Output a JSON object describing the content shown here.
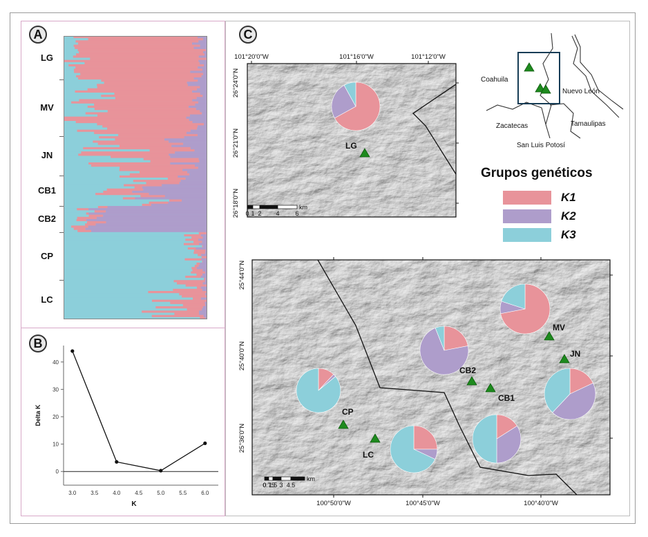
{
  "panels": {
    "a": "A",
    "b": "B",
    "c": "C"
  },
  "colors": {
    "k1": "#E8939A",
    "k2": "#AE9DCB",
    "k3": "#8CCFDA"
  },
  "structure": {
    "populations": [
      "LG",
      "MV",
      "JN",
      "CB1",
      "CB2",
      "CP",
      "LC"
    ]
  },
  "chart_data": {
    "type": "line",
    "x": [
      3.0,
      4.0,
      5.0,
      6.0
    ],
    "y": [
      44.0,
      3.5,
      0.3,
      10.3
    ],
    "xlabel": "K",
    "ylabel": "Delta K",
    "xticks": [
      "3.0",
      "3.5",
      "4.0",
      "4.5",
      "5.0",
      "5.5",
      "6.0"
    ],
    "yticks": [
      "0",
      "10",
      "20",
      "30",
      "40"
    ],
    "xlim": [
      2.8,
      6.3
    ],
    "ylim": [
      -5,
      46
    ]
  },
  "map_top": {
    "lon_labels": [
      "101°20'0\"W",
      "101°16'0\"W",
      "101°12'0\"W"
    ],
    "lat_labels": [
      "26°24'0\"N",
      "26°21'0\"N",
      "26°18'0\"N"
    ],
    "scale": {
      "ticks": [
        "0",
        "1",
        "2",
        "4",
        "6"
      ],
      "unit": "km"
    },
    "sites": [
      {
        "name": "LG",
        "k1": 0.67,
        "k2": 0.25,
        "k3": 0.08
      }
    ]
  },
  "map_bottom": {
    "lon_labels": [
      "100°50'0\"W",
      "100°45'0\"W",
      "100°40'0\"W"
    ],
    "lat_labels": [
      "25°44'0\"N",
      "25°40'0\"N",
      "25°36'0\"N"
    ],
    "scale": {
      "ticks": [
        "0",
        "0.75",
        "1.5",
        "3",
        "4.5"
      ],
      "unit": "km"
    },
    "sites": [
      {
        "name": "MV",
        "k1": 0.72,
        "k2": 0.08,
        "k3": 0.2
      },
      {
        "name": "JN",
        "k1": 0.18,
        "k2": 0.44,
        "k3": 0.38
      },
      {
        "name": "CB2",
        "k1": 0.22,
        "k2": 0.72,
        "k3": 0.06
      },
      {
        "name": "CB1",
        "k1": 0.16,
        "k2": 0.34,
        "k3": 0.5
      },
      {
        "name": "CP",
        "k1": 0.12,
        "k2": 0.02,
        "k3": 0.86
      },
      {
        "name": "LC",
        "k1": 0.25,
        "k2": 0.07,
        "k3": 0.68
      }
    ]
  },
  "inset": {
    "states": [
      "Coahuila",
      "Nuevo León",
      "Zacatecas",
      "Tamaulipas",
      "San Luis Potosí"
    ]
  },
  "legend": {
    "title": "Grupos genéticos",
    "items": [
      {
        "label": "K1",
        "color": "#E8939A"
      },
      {
        "label": "K2",
        "color": "#AE9DCB"
      },
      {
        "label": "K3",
        "color": "#8CCFDA"
      }
    ]
  }
}
